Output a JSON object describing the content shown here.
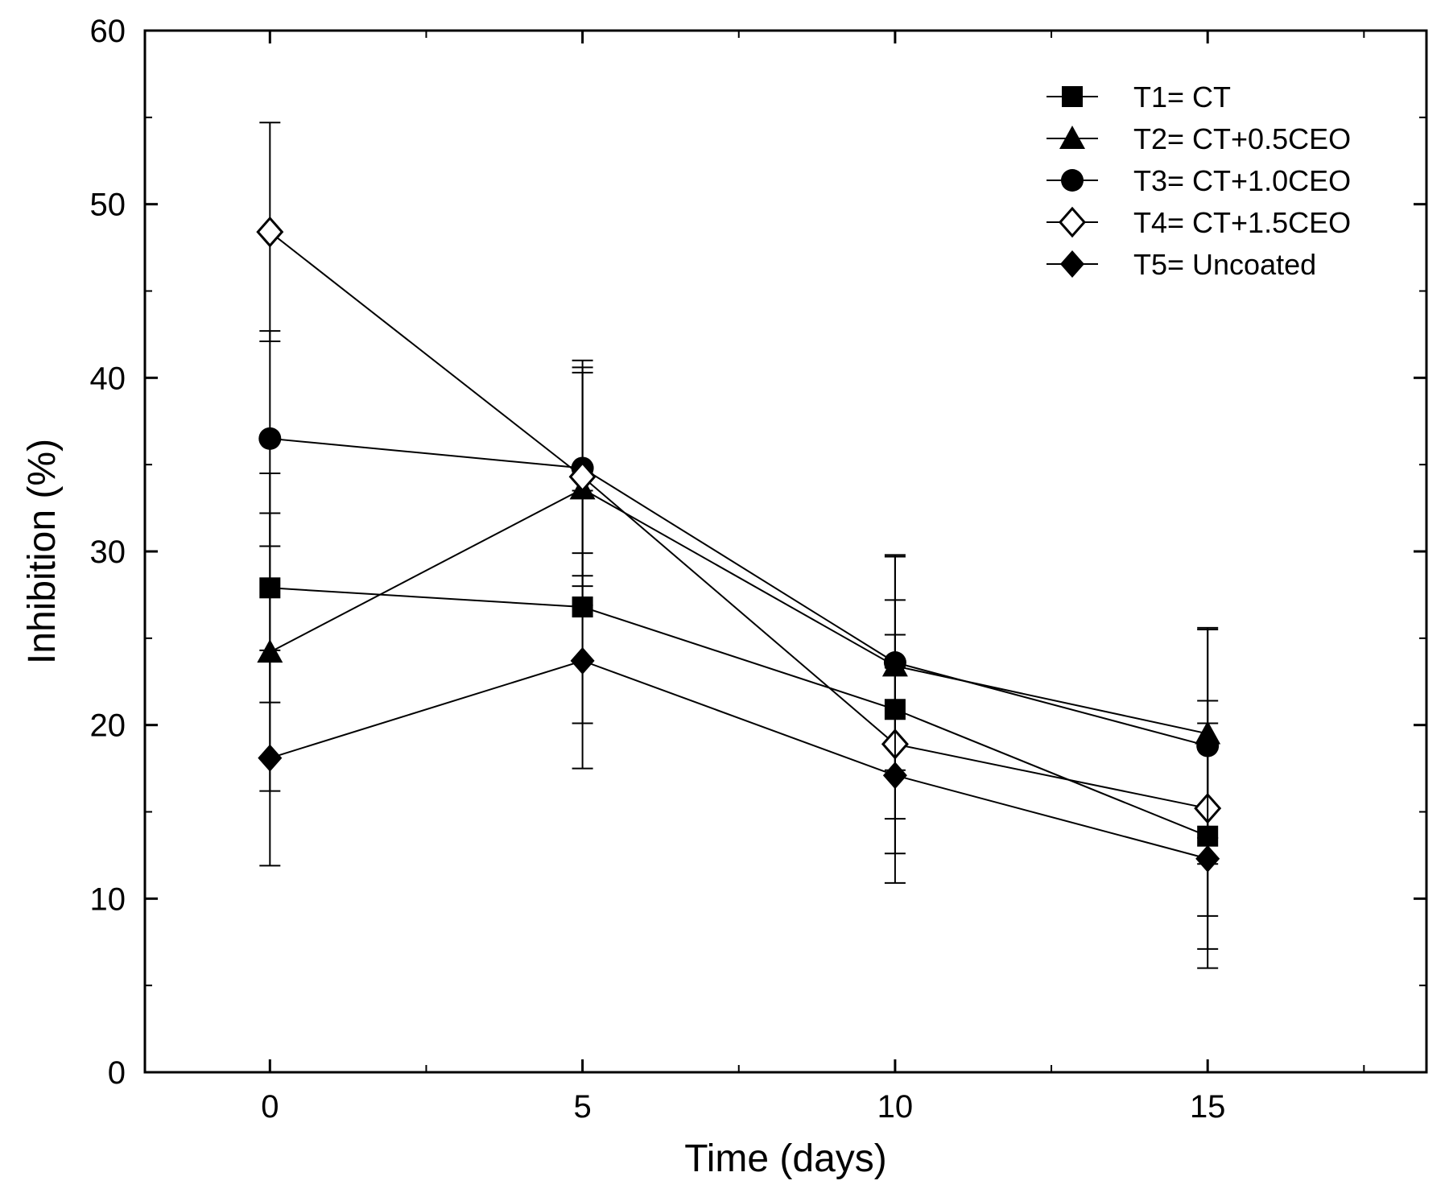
{
  "chart_data": {
    "type": "line",
    "title": "",
    "xlabel": "Time (days)",
    "ylabel": "Inhibition (%)",
    "xlim": [
      -2,
      18.5
    ],
    "ylim": [
      0,
      60
    ],
    "x": [
      0,
      5,
      10,
      15
    ],
    "x_ticks": [
      0,
      5,
      10,
      15
    ],
    "x_tick_labels": [
      "0",
      "5",
      "10",
      "15"
    ],
    "y_ticks": [
      0,
      10,
      20,
      30,
      40,
      50,
      60
    ],
    "y_tick_labels": [
      "0",
      "10",
      "20",
      "30",
      "40",
      "50",
      "60"
    ],
    "legend_position": "top-right",
    "grid": false,
    "series": [
      {
        "name": "T1= CT",
        "marker": "square",
        "values": [
          27.9,
          26.8,
          20.9,
          13.6
        ],
        "errors": [
          6.6,
          6.7,
          6.3,
          6.5
        ]
      },
      {
        "name": "T2= CT+0.5CEO",
        "marker": "triangle",
        "values": [
          24.2,
          33.6,
          23.4,
          19.5
        ],
        "errors": [
          8.0,
          6.7,
          6.3,
          6.0
        ]
      },
      {
        "name": "T3= CT+1.0CEO",
        "marker": "circle",
        "values": [
          36.5,
          34.8,
          23.6,
          18.8
        ],
        "errors": [
          6.2,
          6.2,
          6.2,
          6.8
        ]
      },
      {
        "name": "T4= CT+1.5CEO",
        "marker": "diamond-open",
        "values": [
          48.4,
          34.3,
          18.9,
          15.2
        ],
        "errors": [
          6.3,
          6.3,
          6.3,
          6.2
        ]
      },
      {
        "name": "T5= Uncoated",
        "marker": "diamond",
        "values": [
          18.1,
          23.7,
          17.1,
          12.3
        ],
        "errors": [
          6.2,
          6.2,
          6.2,
          6.3
        ]
      }
    ]
  }
}
